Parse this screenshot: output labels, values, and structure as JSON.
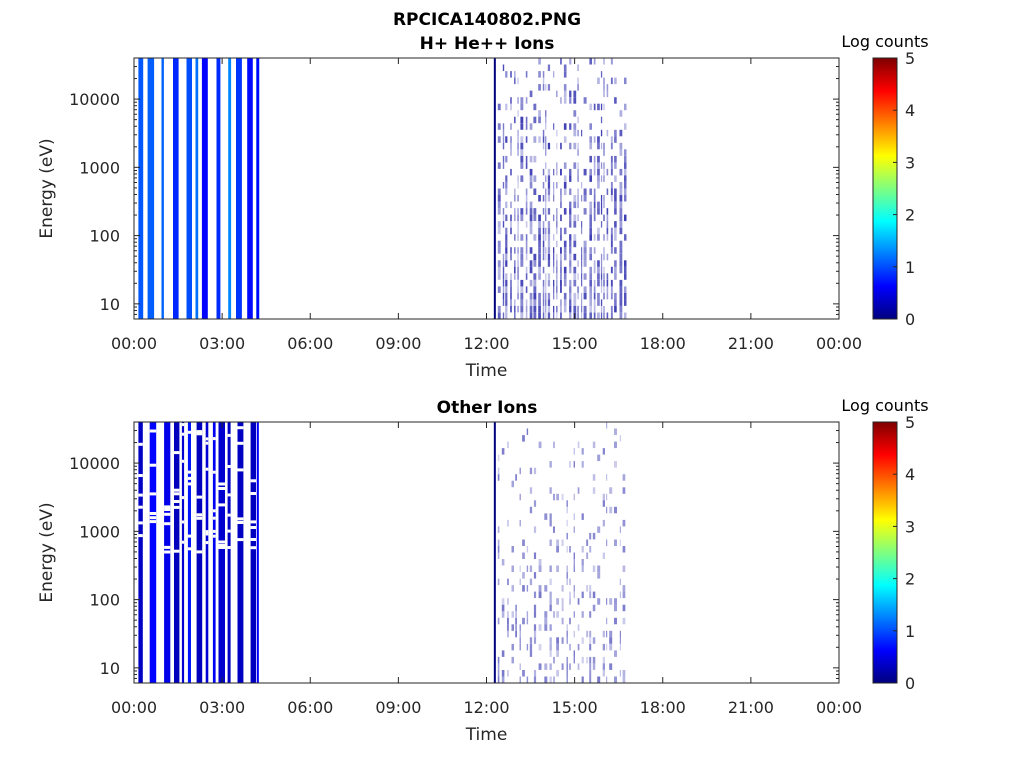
{
  "figure": {
    "title": "RPCICA140802.PNG"
  },
  "colors": {
    "axis": "#000000",
    "text": "#262626",
    "colormap": [
      "#00007f",
      "#0000ff",
      "#007fff",
      "#00ffff",
      "#7fff7f",
      "#ffff00",
      "#ff7f00",
      "#ff0000",
      "#7f0000"
    ]
  },
  "chart_data": [
    {
      "type": "heatmap",
      "title": "H+ He++ Ions",
      "xlabel": "Time",
      "ylabel": "Energy (eV)",
      "y_scale": "log",
      "xlim": [
        0,
        24
      ],
      "ylim": [
        6,
        40000
      ],
      "x_ticks": [
        0,
        3,
        6,
        9,
        12,
        15,
        18,
        21,
        24
      ],
      "x_tick_labels": [
        "00:00",
        "03:00",
        "06:00",
        "09:00",
        "12:00",
        "15:00",
        "18:00",
        "21:00",
        "00:00"
      ],
      "y_ticks": [
        10,
        100,
        1000,
        10000
      ],
      "y_tick_labels": [
        "10",
        "100",
        "1000",
        "10000"
      ],
      "colorbar": {
        "label": "Log counts",
        "range": [
          0,
          5
        ],
        "ticks": [
          0,
          1,
          2,
          3,
          4,
          5
        ],
        "tick_labels": [
          "0",
          "1",
          "2",
          "3",
          "4",
          "5"
        ]
      },
      "bands": [
        {
          "x_start": 0.15,
          "x_end": 4.25,
          "y_min": 6,
          "y_max": 40000,
          "density": "dense",
          "level": 0.9
        },
        {
          "x_start": 12.25,
          "x_end": 16.75,
          "y_min": 6,
          "y_max": 40000,
          "density": "sparse",
          "level": 0.3
        }
      ]
    },
    {
      "type": "heatmap",
      "title": "Other Ions",
      "xlabel": "Time",
      "ylabel": "Energy (eV)",
      "y_scale": "log",
      "xlim": [
        0,
        24
      ],
      "ylim": [
        6,
        40000
      ],
      "x_ticks": [
        0,
        3,
        6,
        9,
        12,
        15,
        18,
        21,
        24
      ],
      "x_tick_labels": [
        "00:00",
        "03:00",
        "06:00",
        "09:00",
        "12:00",
        "15:00",
        "18:00",
        "21:00",
        "00:00"
      ],
      "y_ticks": [
        10,
        100,
        1000,
        10000
      ],
      "y_tick_labels": [
        "10",
        "100",
        "1000",
        "10000"
      ],
      "colorbar": {
        "label": "Log counts",
        "range": [
          0,
          5
        ],
        "ticks": [
          0,
          1,
          2,
          3,
          4,
          5
        ],
        "tick_labels": [
          "0",
          "1",
          "2",
          "3",
          "4",
          "5"
        ]
      },
      "bands": [
        {
          "x_start": 0.15,
          "x_end": 4.25,
          "y_min": 6,
          "y_max": 40000,
          "density": "dense",
          "level": 0.5
        },
        {
          "x_start": 12.25,
          "x_end": 16.75,
          "y_min": 6,
          "y_max": 40000,
          "density": "very-sparse",
          "level": 0.2
        }
      ]
    }
  ]
}
